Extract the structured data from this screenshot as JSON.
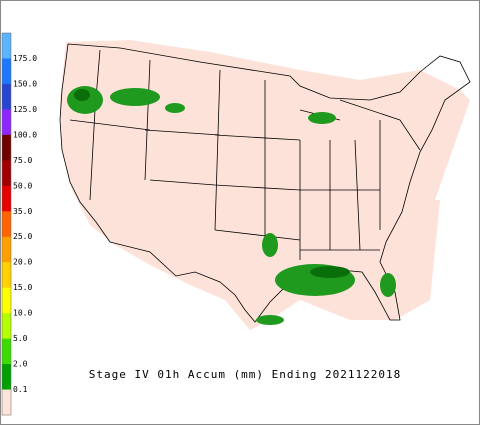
{
  "title": "Stage IV 01h Accum (mm) Ending 2021122018",
  "legend": {
    "labels": [
      "175.0",
      "150.0",
      "125.0",
      "100.0",
      "75.0",
      "50.0",
      "35.0",
      "25.0",
      "20.0",
      "15.0",
      "10.0",
      "5.0",
      "2.0",
      "0.1"
    ],
    "colors": [
      "#5ab4ff",
      "#1e78ff",
      "#2846d2",
      "#8c28ff",
      "#6e0000",
      "#a00000",
      "#e60000",
      "#ff6400",
      "#ffa000",
      "#ffd200",
      "#ffff00",
      "#b4ff00",
      "#3cdc00",
      "#00a000",
      "#ffe4dc"
    ]
  }
}
